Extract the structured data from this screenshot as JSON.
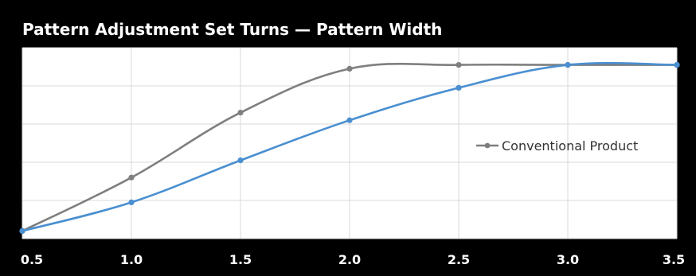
{
  "chart_data": {
    "type": "line",
    "title": "Pattern Adjustment Set Turns — Pattern Width",
    "x": [
      0.5,
      1.0,
      1.5,
      2.0,
      2.5,
      3.0,
      3.5
    ],
    "x_tick_labels": [
      "0.5",
      "1.0",
      "1.5",
      "2.0",
      "2.5",
      "3.0",
      "3.5"
    ],
    "xlim": [
      0.5,
      3.5
    ],
    "ylim": [
      0,
      1
    ],
    "y_axis_labels_shown": false,
    "grid": true,
    "legend_position": "right",
    "series": [
      {
        "name": "Conventional Product",
        "color": "#7f7f7f",
        "values": [
          0.04,
          0.32,
          0.66,
          0.89,
          0.91,
          0.91,
          0.91
        ]
      },
      {
        "name": "",
        "color": "#4a8fd0",
        "values": [
          0.04,
          0.19,
          0.41,
          0.62,
          0.79,
          0.91,
          0.91
        ]
      }
    ],
    "colors": {
      "background": "#000000",
      "plot_area": "#ffffff",
      "grid": "#d9d9d9",
      "title_text": "#ffffff",
      "tick_text": "#ffffff",
      "legend_text": "#333333"
    }
  }
}
